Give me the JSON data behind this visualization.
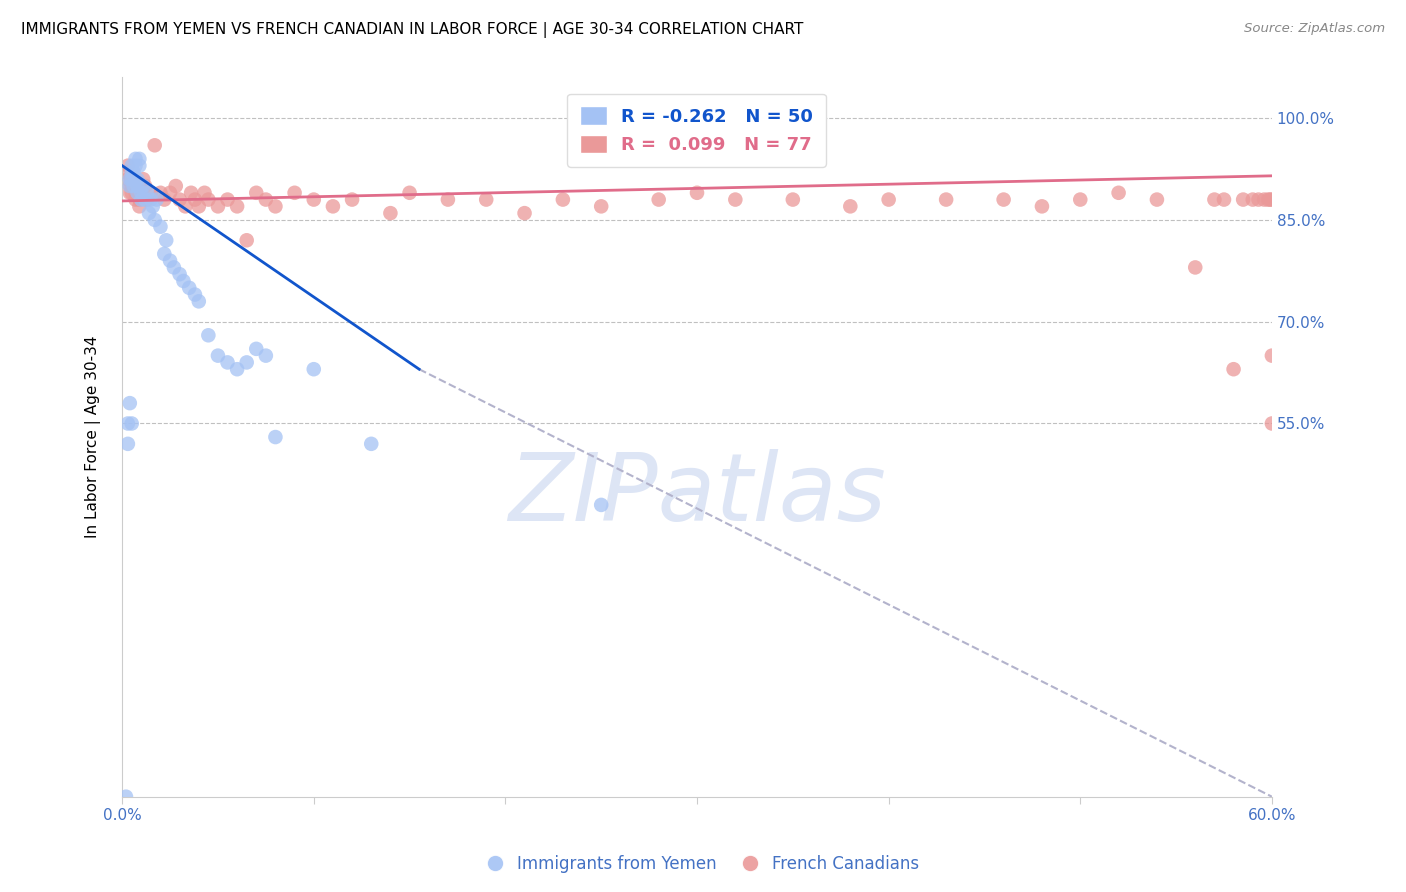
{
  "title": "IMMIGRANTS FROM YEMEN VS FRENCH CANADIAN IN LABOR FORCE | AGE 30-34 CORRELATION CHART",
  "source_text": "Source: ZipAtlas.com",
  "ylabel": "In Labor Force | Age 30-34",
  "xlim": [
    0.0,
    0.6
  ],
  "ylim": [
    0.0,
    1.06
  ],
  "yticks": [
    0.55,
    0.7,
    0.85,
    1.0
  ],
  "ytick_labels": [
    "55.0%",
    "70.0%",
    "85.0%",
    "100.0%"
  ],
  "xticks": [
    0.0,
    0.1,
    0.2,
    0.3,
    0.4,
    0.5,
    0.6
  ],
  "xtick_labels": [
    "0.0%",
    "",
    "",
    "",
    "",
    "",
    "60.0%"
  ],
  "legend_R_blue": "-0.262",
  "legend_N_blue": "50",
  "legend_R_pink": "0.099",
  "legend_N_pink": "77",
  "blue_color": "#a4c2f4",
  "pink_color": "#ea9999",
  "line_blue_color": "#1155cc",
  "line_pink_color": "#e06c8a",
  "dashed_line_color": "#b3b3cc",
  "background_color": "#ffffff",
  "grid_color": "#c0c0c0",
  "watermark_color": "#dde5f5",
  "title_color": "#000000",
  "tick_label_color": "#4472c4",
  "source_color": "#888888",
  "blue_scatter_x": [
    0.002,
    0.003,
    0.003,
    0.004,
    0.004,
    0.004,
    0.005,
    0.005,
    0.005,
    0.005,
    0.006,
    0.006,
    0.007,
    0.007,
    0.008,
    0.008,
    0.008,
    0.009,
    0.009,
    0.01,
    0.01,
    0.011,
    0.012,
    0.013,
    0.014,
    0.015,
    0.016,
    0.017,
    0.018,
    0.02,
    0.022,
    0.023,
    0.025,
    0.027,
    0.03,
    0.032,
    0.035,
    0.038,
    0.04,
    0.045,
    0.05,
    0.055,
    0.06,
    0.065,
    0.07,
    0.075,
    0.08,
    0.1,
    0.13,
    0.25
  ],
  "blue_scatter_y": [
    0.0,
    0.52,
    0.55,
    0.58,
    0.9,
    0.91,
    0.92,
    0.93,
    0.91,
    0.55,
    0.9,
    0.92,
    0.93,
    0.94,
    0.91,
    0.89,
    0.9,
    0.93,
    0.94,
    0.88,
    0.89,
    0.9,
    0.88,
    0.89,
    0.86,
    0.88,
    0.87,
    0.85,
    0.88,
    0.84,
    0.8,
    0.82,
    0.79,
    0.78,
    0.77,
    0.76,
    0.75,
    0.74,
    0.73,
    0.68,
    0.65,
    0.64,
    0.63,
    0.64,
    0.66,
    0.65,
    0.53,
    0.63,
    0.52,
    0.43
  ],
  "pink_scatter_x": [
    0.002,
    0.003,
    0.003,
    0.004,
    0.004,
    0.005,
    0.005,
    0.005,
    0.006,
    0.006,
    0.007,
    0.007,
    0.008,
    0.008,
    0.009,
    0.009,
    0.01,
    0.01,
    0.011,
    0.012,
    0.013,
    0.015,
    0.017,
    0.02,
    0.022,
    0.025,
    0.028,
    0.03,
    0.033,
    0.036,
    0.038,
    0.04,
    0.043,
    0.045,
    0.05,
    0.055,
    0.06,
    0.065,
    0.07,
    0.075,
    0.08,
    0.09,
    0.1,
    0.11,
    0.12,
    0.14,
    0.15,
    0.17,
    0.19,
    0.21,
    0.23,
    0.25,
    0.28,
    0.3,
    0.32,
    0.35,
    0.38,
    0.4,
    0.43,
    0.46,
    0.48,
    0.5,
    0.52,
    0.54,
    0.56,
    0.57,
    0.575,
    0.58,
    0.585,
    0.59,
    0.593,
    0.596,
    0.598,
    0.599,
    0.6,
    0.6,
    0.6
  ],
  "pink_scatter_y": [
    0.92,
    0.93,
    0.91,
    0.9,
    0.89,
    0.91,
    0.9,
    0.89,
    0.91,
    0.9,
    0.89,
    0.88,
    0.9,
    0.89,
    0.88,
    0.87,
    0.9,
    0.89,
    0.91,
    0.9,
    0.88,
    0.89,
    0.96,
    0.89,
    0.88,
    0.89,
    0.9,
    0.88,
    0.87,
    0.89,
    0.88,
    0.87,
    0.89,
    0.88,
    0.87,
    0.88,
    0.87,
    0.82,
    0.89,
    0.88,
    0.87,
    0.89,
    0.88,
    0.87,
    0.88,
    0.86,
    0.89,
    0.88,
    0.88,
    0.86,
    0.88,
    0.87,
    0.88,
    0.89,
    0.88,
    0.88,
    0.87,
    0.88,
    0.88,
    0.88,
    0.87,
    0.88,
    0.89,
    0.88,
    0.78,
    0.88,
    0.88,
    0.63,
    0.88,
    0.88,
    0.88,
    0.88,
    0.88,
    0.88,
    0.55,
    0.65,
    0.88
  ],
  "blue_line_x": [
    0.0,
    0.155
  ],
  "blue_line_y": [
    0.93,
    0.63
  ],
  "pink_line_x": [
    0.0,
    0.6
  ],
  "pink_line_y": [
    0.878,
    0.915
  ],
  "dashed_line_x": [
    0.155,
    0.6
  ],
  "dashed_line_y": [
    0.63,
    0.0
  ],
  "figsize": [
    14.06,
    8.92
  ],
  "dpi": 100
}
